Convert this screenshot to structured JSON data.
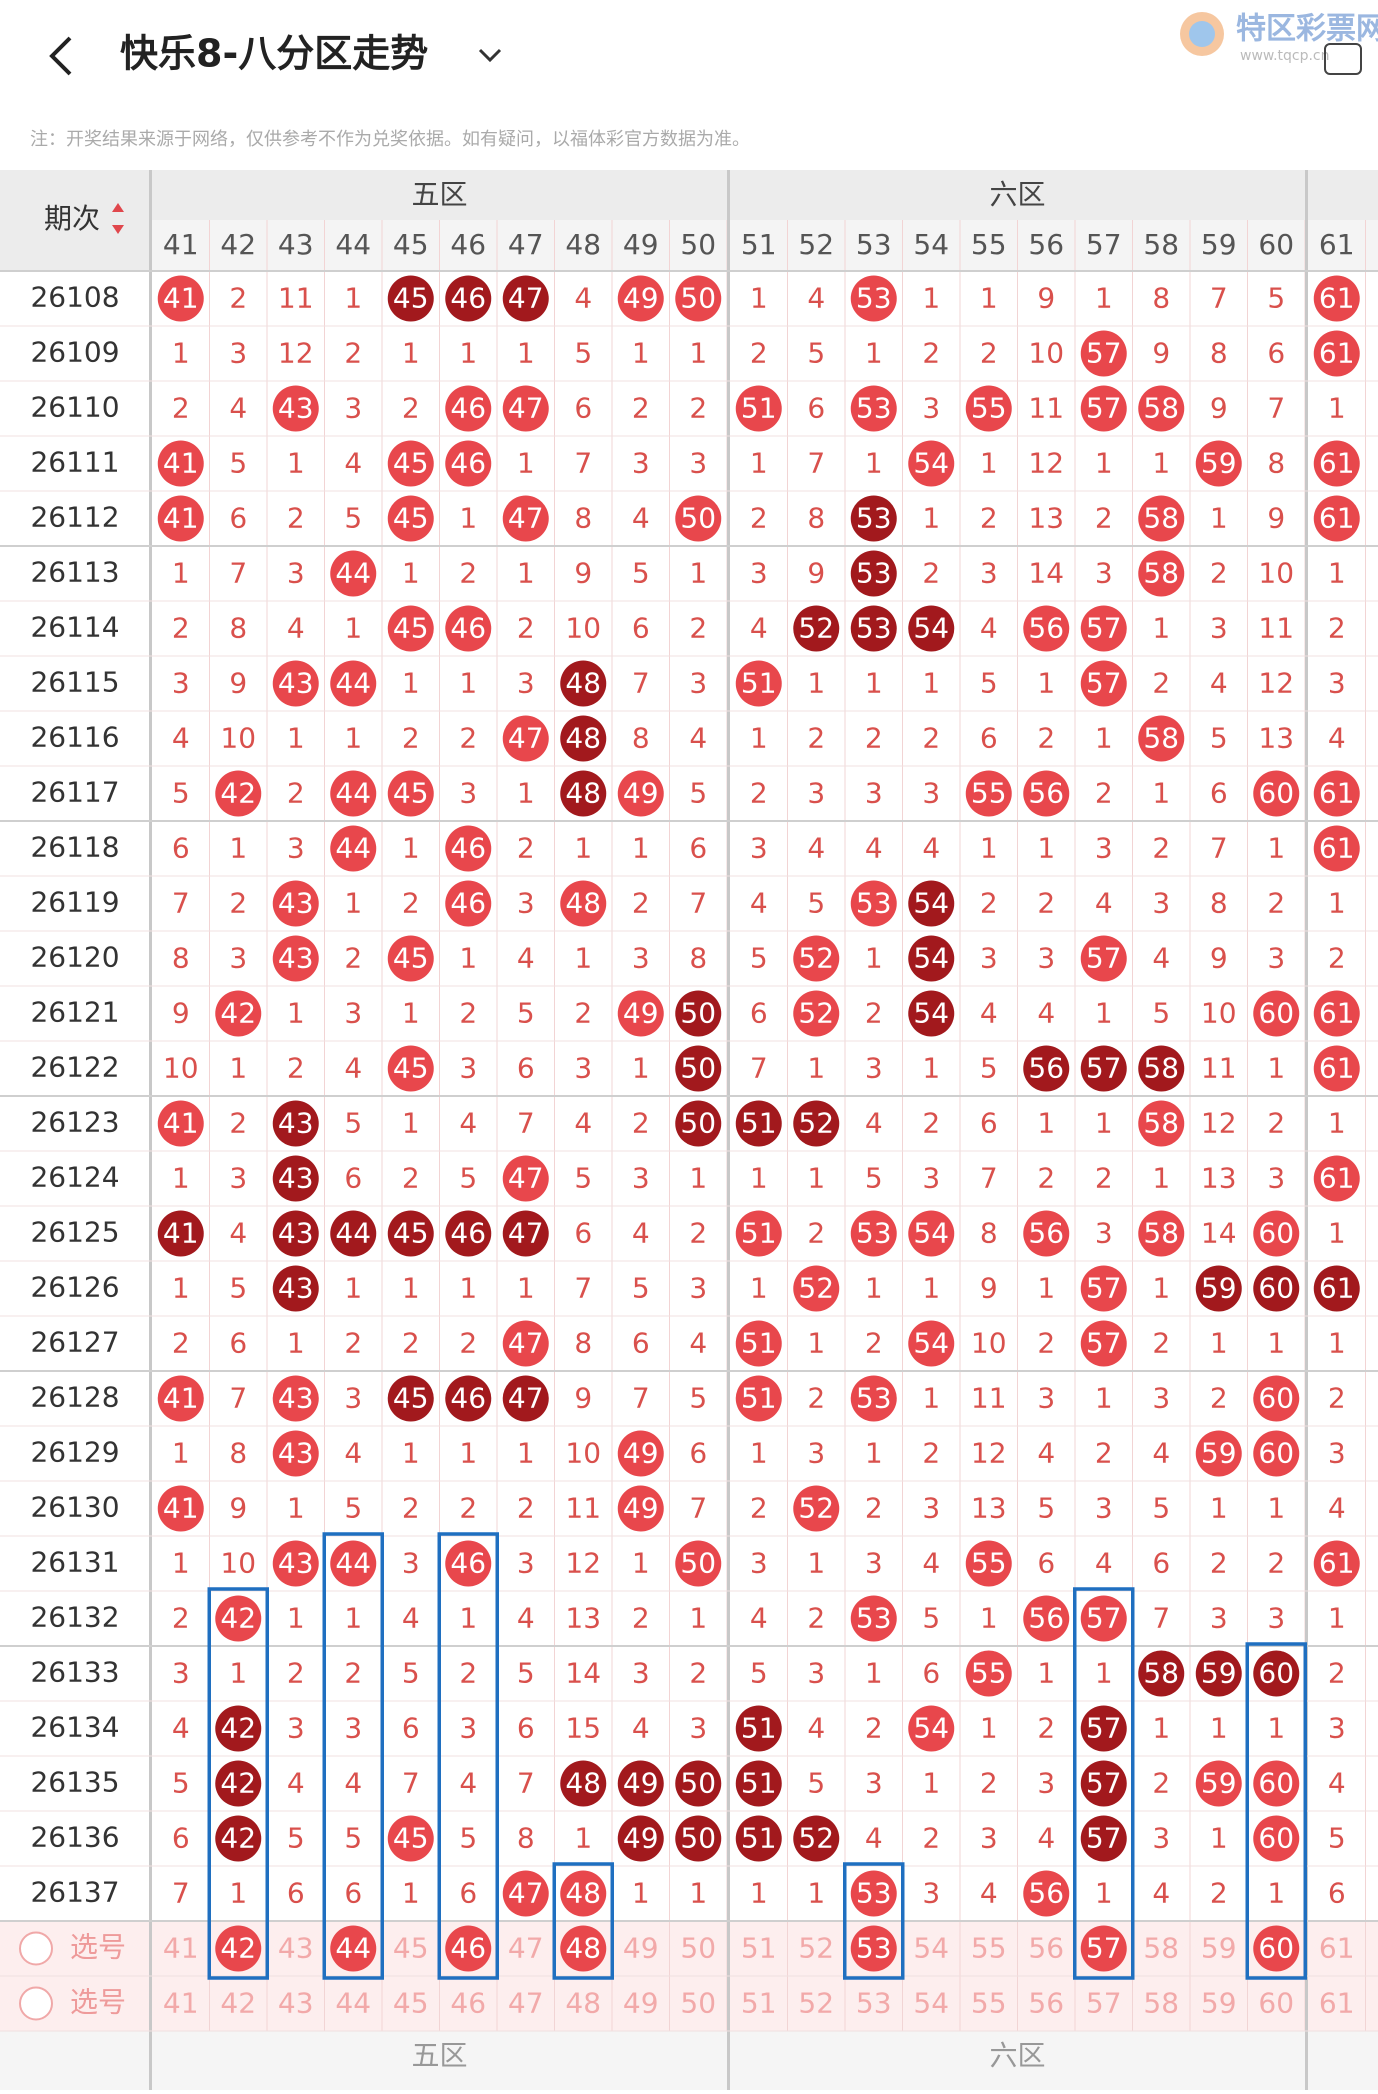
{
  "header": {
    "title": "快乐8-八分区走势",
    "logo": "特区彩票网",
    "logo_url": "www.tqcp.cn"
  },
  "note": "注：开奖结果来源于网络，仅供参考不作为兑奖依据。如有疑问，以福体彩官方数据为准。",
  "table": {
    "period_label": "期次",
    "zones": [
      {
        "name": "五区",
        "columns": [
          "41",
          "42",
          "43",
          "44",
          "45",
          "46",
          "47",
          "48",
          "49",
          "50"
        ]
      },
      {
        "name": "六区",
        "columns": [
          "51",
          "52",
          "53",
          "54",
          "55",
          "56",
          "57",
          "58",
          "59",
          "60"
        ]
      }
    ],
    "extra_columns": [
      "61"
    ],
    "rows": [
      {
        "period": "26108",
        "cells": [
          41,
          2,
          11,
          1,
          45,
          46,
          47,
          4,
          49,
          50,
          1,
          4,
          53,
          1,
          1,
          9,
          1,
          8,
          7,
          5,
          61
        ],
        "balls": "r...ddd.rr..r.......r"
      },
      {
        "period": "26109",
        "cells": [
          1,
          3,
          12,
          2,
          1,
          1,
          1,
          5,
          1,
          1,
          2,
          5,
          1,
          2,
          2,
          10,
          57,
          9,
          8,
          6,
          61
        ],
        "balls": "................r...r"
      },
      {
        "period": "26110",
        "cells": [
          2,
          4,
          43,
          3,
          2,
          46,
          47,
          6,
          2,
          2,
          51,
          6,
          53,
          3,
          55,
          11,
          57,
          58,
          9,
          7,
          1
        ],
        "balls": "..r..rr...r.r.r.rr..."
      },
      {
        "period": "26111",
        "cells": [
          41,
          5,
          1,
          4,
          45,
          46,
          1,
          7,
          3,
          3,
          1,
          7,
          1,
          54,
          1,
          12,
          1,
          1,
          59,
          8,
          61
        ],
        "balls": "r...rr.......r....r.r"
      },
      {
        "period": "26112",
        "cells": [
          41,
          6,
          2,
          5,
          45,
          1,
          47,
          8,
          4,
          50,
          2,
          8,
          53,
          1,
          2,
          13,
          2,
          58,
          1,
          9,
          61
        ],
        "balls": "r...r.r..r..d....r..r"
      },
      {
        "period": "26113",
        "cells": [
          1,
          7,
          3,
          44,
          1,
          2,
          1,
          9,
          5,
          1,
          3,
          9,
          53,
          2,
          3,
          14,
          3,
          58,
          2,
          10,
          1
        ],
        "balls": "...r........d....r..."
      },
      {
        "period": "26114",
        "cells": [
          2,
          8,
          4,
          1,
          45,
          46,
          2,
          10,
          6,
          2,
          4,
          52,
          53,
          54,
          4,
          56,
          57,
          1,
          3,
          11,
          2
        ],
        "balls": "....rr.....ddd.rr...."
      },
      {
        "period": "26115",
        "cells": [
          3,
          9,
          43,
          44,
          1,
          1,
          3,
          48,
          7,
          3,
          51,
          1,
          1,
          1,
          5,
          1,
          57,
          2,
          4,
          12,
          3
        ],
        "balls": "..rr...d..r.....r...."
      },
      {
        "period": "26116",
        "cells": [
          4,
          10,
          1,
          1,
          2,
          2,
          47,
          48,
          8,
          4,
          1,
          2,
          2,
          2,
          6,
          2,
          1,
          58,
          5,
          13,
          4
        ],
        "balls": "......rd.........r..."
      },
      {
        "period": "26117",
        "cells": [
          5,
          42,
          2,
          44,
          45,
          3,
          1,
          48,
          49,
          5,
          2,
          3,
          3,
          3,
          55,
          56,
          2,
          1,
          6,
          60,
          61
        ],
        "balls": ".r.rr..dr.....rr...rr"
      },
      {
        "period": "26118",
        "cells": [
          6,
          1,
          3,
          44,
          1,
          46,
          2,
          1,
          1,
          6,
          3,
          4,
          4,
          4,
          1,
          1,
          3,
          2,
          7,
          1,
          61
        ],
        "balls": "...r.r..............r"
      },
      {
        "period": "26119",
        "cells": [
          7,
          2,
          43,
          1,
          2,
          46,
          3,
          48,
          2,
          7,
          4,
          5,
          53,
          54,
          2,
          2,
          4,
          3,
          8,
          2,
          1
        ],
        "balls": "..r..r.r....rd......."
      },
      {
        "period": "26120",
        "cells": [
          8,
          3,
          43,
          2,
          45,
          1,
          4,
          1,
          3,
          8,
          5,
          52,
          1,
          54,
          3,
          3,
          57,
          4,
          9,
          3,
          2
        ],
        "balls": "..r.r......r.d..r...."
      },
      {
        "period": "26121",
        "cells": [
          9,
          42,
          1,
          3,
          1,
          2,
          5,
          2,
          49,
          50,
          6,
          52,
          2,
          54,
          4,
          4,
          1,
          5,
          10,
          60,
          61
        ],
        "balls": ".r......rd.r.d.....rr"
      },
      {
        "period": "26122",
        "cells": [
          10,
          1,
          2,
          4,
          45,
          3,
          6,
          3,
          1,
          50,
          7,
          1,
          3,
          1,
          5,
          56,
          57,
          58,
          11,
          1,
          61
        ],
        "balls": "....r....d.....ddd..r"
      },
      {
        "period": "26123",
        "cells": [
          41,
          2,
          43,
          5,
          1,
          4,
          7,
          4,
          2,
          50,
          51,
          52,
          4,
          2,
          6,
          1,
          1,
          58,
          12,
          2,
          1
        ],
        "balls": "r.d......ddd.....r..."
      },
      {
        "period": "26124",
        "cells": [
          1,
          3,
          43,
          6,
          2,
          5,
          47,
          5,
          3,
          1,
          1,
          1,
          5,
          3,
          7,
          2,
          2,
          1,
          13,
          3,
          61
        ],
        "balls": "..d...r.............r"
      },
      {
        "period": "26125",
        "cells": [
          41,
          4,
          43,
          44,
          45,
          46,
          47,
          6,
          4,
          2,
          51,
          2,
          53,
          54,
          8,
          56,
          3,
          58,
          14,
          60,
          1
        ],
        "balls": "d.ddddd...r.rr.r.r.r."
      },
      {
        "period": "26126",
        "cells": [
          1,
          5,
          43,
          1,
          1,
          1,
          1,
          7,
          5,
          3,
          1,
          52,
          1,
          1,
          9,
          1,
          57,
          1,
          59,
          60,
          61
        ],
        "balls": "..d........r....r.ddd"
      },
      {
        "period": "26127",
        "cells": [
          2,
          6,
          1,
          2,
          2,
          2,
          47,
          8,
          6,
          4,
          51,
          1,
          2,
          54,
          10,
          2,
          57,
          2,
          1,
          1,
          1
        ],
        "balls": "......r...r..r..r...."
      },
      {
        "period": "26128",
        "cells": [
          41,
          7,
          43,
          3,
          45,
          46,
          47,
          9,
          7,
          5,
          51,
          2,
          53,
          1,
          11,
          3,
          1,
          3,
          2,
          60,
          2
        ],
        "balls": "r.r.ddd...r.r......r."
      },
      {
        "period": "26129",
        "cells": [
          1,
          8,
          43,
          4,
          1,
          1,
          1,
          10,
          49,
          6,
          1,
          3,
          1,
          2,
          12,
          4,
          2,
          4,
          59,
          60,
          3
        ],
        "balls": "..r.....r.........rr."
      },
      {
        "period": "26130",
        "cells": [
          41,
          9,
          1,
          5,
          2,
          2,
          2,
          11,
          49,
          7,
          2,
          52,
          2,
          3,
          13,
          5,
          3,
          5,
          1,
          1,
          4
        ],
        "balls": "r.......r..r........."
      },
      {
        "period": "26131",
        "cells": [
          1,
          10,
          43,
          44,
          3,
          46,
          3,
          12,
          1,
          50,
          3,
          1,
          3,
          4,
          55,
          6,
          4,
          6,
          2,
          2,
          61
        ],
        "balls": "..rr.r...r....r.....r"
      },
      {
        "period": "26132",
        "cells": [
          2,
          42,
          1,
          1,
          4,
          1,
          4,
          13,
          2,
          1,
          4,
          2,
          53,
          5,
          1,
          56,
          57,
          7,
          3,
          3,
          1
        ],
        "balls": ".r..........r..rr...."
      },
      {
        "period": "26133",
        "cells": [
          3,
          1,
          2,
          2,
          5,
          2,
          5,
          14,
          3,
          2,
          5,
          3,
          1,
          6,
          55,
          1,
          1,
          58,
          59,
          60,
          2
        ],
        "balls": "..............r..ddd."
      },
      {
        "period": "26134",
        "cells": [
          4,
          42,
          3,
          3,
          6,
          3,
          6,
          15,
          4,
          3,
          51,
          4,
          2,
          54,
          1,
          2,
          57,
          1,
          1,
          1,
          3
        ],
        "balls": ".d........d..r..d...."
      },
      {
        "period": "26135",
        "cells": [
          5,
          42,
          4,
          4,
          7,
          4,
          7,
          48,
          49,
          50,
          51,
          5,
          3,
          1,
          2,
          3,
          57,
          2,
          59,
          60,
          4
        ],
        "balls": ".d.....dddd.....d.rr."
      },
      {
        "period": "26136",
        "cells": [
          6,
          42,
          5,
          5,
          45,
          5,
          8,
          1,
          49,
          50,
          51,
          52,
          4,
          2,
          3,
          4,
          57,
          3,
          1,
          60,
          5
        ],
        "balls": ".d..r...dddd....d..r."
      },
      {
        "period": "26137",
        "cells": [
          7,
          1,
          6,
          6,
          1,
          6,
          47,
          48,
          1,
          1,
          1,
          1,
          53,
          3,
          4,
          56,
          1,
          4,
          2,
          1,
          6
        ],
        "balls": "......rr....r..r....."
      }
    ],
    "selector_rows": [
      {
        "label": "选号",
        "balls": ".r.r.r.r....r...r..r."
      },
      {
        "label": "选号",
        "balls": "....................."
      }
    ]
  }
}
